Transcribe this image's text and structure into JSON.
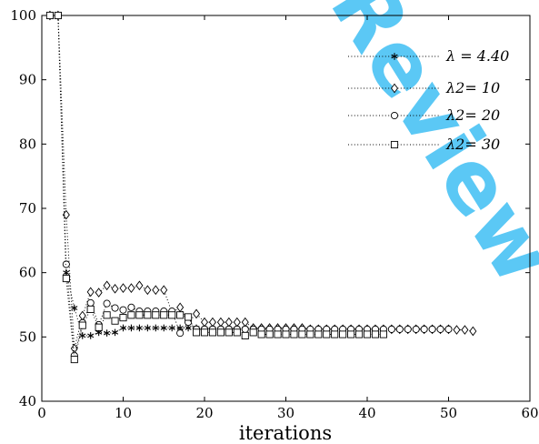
{
  "chart_data": {
    "type": "scatter",
    "title": "",
    "xlabel": "iterations",
    "ylabel": "",
    "xlim": [
      0,
      60
    ],
    "ylim": [
      40,
      100
    ],
    "xticks": [
      0,
      10,
      20,
      30,
      40,
      50,
      60
    ],
    "yticks": [
      40,
      50,
      60,
      70,
      80,
      90,
      100
    ],
    "legend_position": "top-right",
    "watermark": "Review",
    "watermark_color": "#5bc8f5",
    "series": [
      {
        "name": "λ = 4.40",
        "marker": "asterisk",
        "points": [
          [
            1,
            100
          ],
          [
            2,
            100
          ],
          [
            3,
            60
          ],
          [
            4,
            54.5
          ],
          [
            5,
            50.2
          ],
          [
            6,
            50.2
          ],
          [
            7,
            50.7
          ],
          [
            8,
            50.6
          ],
          [
            9,
            50.7
          ],
          [
            10,
            51.4
          ],
          [
            11,
            51.4
          ],
          [
            12,
            51.4
          ],
          [
            13,
            51.4
          ],
          [
            14,
            51.4
          ],
          [
            15,
            51.4
          ],
          [
            16,
            51.4
          ],
          [
            17,
            51.4
          ],
          [
            18,
            51.4
          ],
          [
            19,
            51.4
          ],
          [
            20,
            51.3
          ],
          [
            21,
            51.3
          ],
          [
            22,
            51.3
          ],
          [
            23,
            51.3
          ],
          [
            24,
            51.3
          ],
          [
            25,
            51.3
          ],
          [
            26,
            51.3
          ],
          [
            27,
            51.3
          ],
          [
            28,
            51.2
          ],
          [
            29,
            51.2
          ],
          [
            30,
            51.2
          ],
          [
            31,
            51.2
          ],
          [
            32,
            51.2
          ],
          [
            33,
            51.2
          ],
          [
            34,
            51.2
          ],
          [
            35,
            51.2
          ],
          [
            36,
            51.2
          ],
          [
            37,
            51.2
          ],
          [
            38,
            51.2
          ],
          [
            39,
            51.2
          ],
          [
            40,
            51.2
          ],
          [
            41,
            51.2
          ],
          [
            42,
            51.2
          ]
        ]
      },
      {
        "name": "λ2= 10",
        "marker": "diamond",
        "points": [
          [
            1,
            100
          ],
          [
            2,
            100
          ],
          [
            3,
            69
          ],
          [
            4,
            48.2
          ],
          [
            5,
            53.3
          ],
          [
            6,
            57
          ],
          [
            7,
            56.9
          ],
          [
            8,
            58
          ],
          [
            9,
            57.5
          ],
          [
            10,
            57.6
          ],
          [
            11,
            57.6
          ],
          [
            12,
            58
          ],
          [
            13,
            57.3
          ],
          [
            14,
            57.3
          ],
          [
            15,
            57.3
          ],
          [
            16,
            53.8
          ],
          [
            17,
            54.6
          ],
          [
            18,
            52.3
          ],
          [
            19,
            53.6
          ],
          [
            20,
            52.3
          ],
          [
            21,
            52.3
          ],
          [
            22,
            52.3
          ],
          [
            23,
            52.3
          ],
          [
            24,
            52.3
          ],
          [
            25,
            52.3
          ],
          [
            26,
            51.4
          ],
          [
            27,
            51.4
          ],
          [
            28,
            51.4
          ],
          [
            29,
            51.4
          ],
          [
            30,
            51.4
          ],
          [
            31,
            51.4
          ],
          [
            32,
            51.4
          ],
          [
            33,
            51.2
          ],
          [
            34,
            51.2
          ],
          [
            35,
            51.2
          ],
          [
            36,
            51.2
          ],
          [
            37,
            51.2
          ],
          [
            38,
            51.2
          ],
          [
            39,
            51.2
          ],
          [
            40,
            51.2
          ],
          [
            41,
            51.2
          ],
          [
            42,
            51.2
          ],
          [
            43,
            51.2
          ],
          [
            44,
            51.2
          ],
          [
            45,
            51.2
          ],
          [
            46,
            51.2
          ],
          [
            47,
            51.2
          ],
          [
            48,
            51.2
          ],
          [
            49,
            51.2
          ],
          [
            50,
            51.2
          ],
          [
            51,
            51.1
          ],
          [
            52,
            51.1
          ],
          [
            53,
            50.9
          ]
        ]
      },
      {
        "name": "λ2= 20",
        "marker": "circle",
        "points": [
          [
            1,
            100
          ],
          [
            2,
            100
          ],
          [
            3,
            61.3
          ],
          [
            4,
            47.1
          ],
          [
            5,
            52.2
          ],
          [
            6,
            55.3
          ],
          [
            7,
            51.9
          ],
          [
            8,
            55.2
          ],
          [
            9,
            54.5
          ],
          [
            10,
            54.2
          ],
          [
            11,
            54.6
          ],
          [
            12,
            54
          ],
          [
            13,
            54
          ],
          [
            14,
            54
          ],
          [
            15,
            54
          ],
          [
            16,
            54
          ],
          [
            17,
            50.6
          ],
          [
            18,
            52.3
          ],
          [
            19,
            51.2
          ],
          [
            20,
            51.2
          ],
          [
            21,
            51.2
          ],
          [
            22,
            51.2
          ],
          [
            23,
            51.2
          ],
          [
            24,
            51.2
          ],
          [
            25,
            51.2
          ],
          [
            26,
            51.2
          ],
          [
            27,
            51.2
          ],
          [
            28,
            51.2
          ],
          [
            29,
            51.2
          ],
          [
            30,
            51.2
          ],
          [
            31,
            51.2
          ],
          [
            32,
            51.2
          ],
          [
            33,
            51.2
          ],
          [
            34,
            51.2
          ],
          [
            35,
            51.2
          ],
          [
            36,
            51.2
          ],
          [
            37,
            51.2
          ],
          [
            38,
            51.2
          ],
          [
            39,
            51.2
          ],
          [
            40,
            51.2
          ],
          [
            41,
            51.2
          ],
          [
            42,
            51.2
          ],
          [
            43,
            51.2
          ],
          [
            44,
            51.2
          ],
          [
            45,
            51.2
          ],
          [
            46,
            51.2
          ],
          [
            47,
            51.2
          ],
          [
            48,
            51.2
          ],
          [
            49,
            51.2
          ],
          [
            50,
            51.2
          ]
        ]
      },
      {
        "name": "λ2= 30",
        "marker": "square",
        "points": [
          [
            1,
            100
          ],
          [
            2,
            100
          ],
          [
            3,
            59.1
          ],
          [
            4,
            46.5
          ],
          [
            5,
            51.8
          ],
          [
            6,
            54.3
          ],
          [
            7,
            51.5
          ],
          [
            8,
            53.4
          ],
          [
            9,
            52.5
          ],
          [
            10,
            53
          ],
          [
            11,
            53.4
          ],
          [
            12,
            53.4
          ],
          [
            13,
            53.4
          ],
          [
            14,
            53.4
          ],
          [
            15,
            53.4
          ],
          [
            16,
            53.4
          ],
          [
            17,
            53.4
          ],
          [
            18,
            53.1
          ],
          [
            19,
            50.7
          ],
          [
            20,
            50.7
          ],
          [
            21,
            50.7
          ],
          [
            22,
            50.7
          ],
          [
            23,
            50.7
          ],
          [
            24,
            50.7
          ],
          [
            25,
            50.2
          ],
          [
            26,
            50.7
          ],
          [
            27,
            50.4
          ],
          [
            28,
            50.4
          ],
          [
            29,
            50.4
          ],
          [
            30,
            50.4
          ],
          [
            31,
            50.4
          ],
          [
            32,
            50.4
          ],
          [
            33,
            50.4
          ],
          [
            34,
            50.4
          ],
          [
            35,
            50.4
          ],
          [
            36,
            50.4
          ],
          [
            37,
            50.4
          ],
          [
            38,
            50.4
          ],
          [
            39,
            50.4
          ],
          [
            40,
            50.4
          ],
          [
            41,
            50.4
          ],
          [
            42,
            50.4
          ]
        ]
      }
    ]
  }
}
